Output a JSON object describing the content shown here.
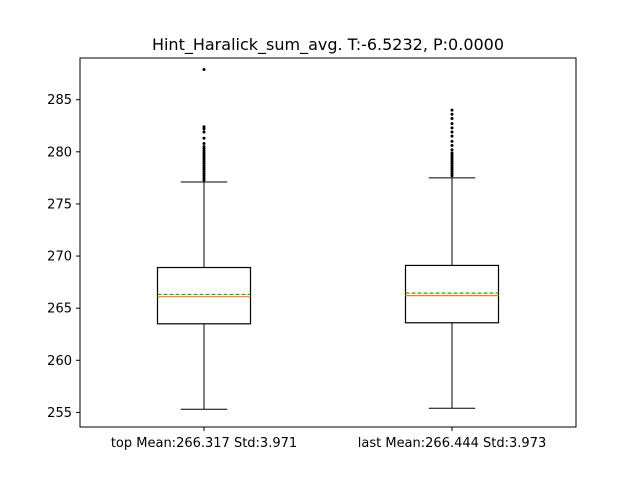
{
  "chart_data": {
    "type": "box",
    "title": "Hint_Haralick_sum_avg. T:-6.5232, P:0.0000",
    "xlabel": "",
    "ylabel": "",
    "ylim": [
      253.6,
      289.0
    ],
    "yticks": [
      255,
      260,
      265,
      270,
      275,
      280,
      285
    ],
    "grid": false,
    "boxes": [
      {
        "label": "top Mean:266.317 Std:3.971",
        "whisker_low": 255.3,
        "q1": 263.5,
        "median": 266.1,
        "mean": 266.317,
        "q3": 268.9,
        "whisker_high": 277.1,
        "outliers": [
          277.3,
          277.5,
          277.7,
          277.9,
          278.1,
          278.3,
          278.5,
          278.7,
          278.9,
          279.1,
          279.3,
          279.5,
          279.7,
          279.9,
          280.1,
          280.3,
          280.5,
          280.8,
          281.3,
          281.9,
          282.2,
          282.4,
          287.9
        ]
      },
      {
        "label": "last Mean:266.444 Std:3.973",
        "whisker_low": 255.4,
        "q1": 263.6,
        "median": 266.2,
        "mean": 266.444,
        "q3": 269.1,
        "whisker_high": 277.5,
        "outliers": [
          277.7,
          277.9,
          278.1,
          278.3,
          278.5,
          278.7,
          278.9,
          279.1,
          279.3,
          279.5,
          279.7,
          279.9,
          280.2,
          280.6,
          281.0,
          281.5,
          281.9,
          282.3,
          282.7,
          283.2,
          283.6,
          284.0
        ]
      }
    ],
    "colors": {
      "box_edge": "#000000",
      "median": "#ff7f0e",
      "mean": "#2ca02c",
      "outlier": "#000000"
    }
  }
}
